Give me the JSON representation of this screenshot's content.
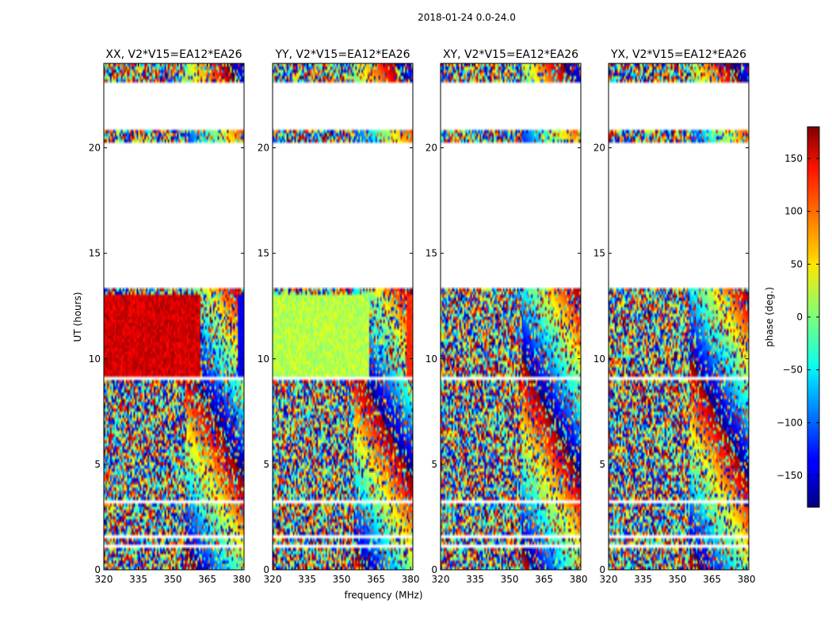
{
  "chart_data": {
    "type": "heatmap",
    "suptitle": "2018-01-24 0.0-24.0",
    "xlabel": "frequency (MHz)",
    "ylabel": "UT (hours)",
    "xlim": [
      320,
      381
    ],
    "ylim": [
      0,
      24
    ],
    "xticks": [
      320,
      335,
      350,
      365,
      380
    ],
    "yticks": [
      0,
      5,
      10,
      15,
      20
    ],
    "panels": [
      {
        "title": "XX, V2*V15=EA12*EA26",
        "product": "XX"
      },
      {
        "title": "YY, V2*V15=EA12*EA26",
        "product": "YY"
      },
      {
        "title": "XY, V2*V15=EA12*EA26",
        "product": "XY"
      },
      {
        "title": "YX, V2*V15=EA12*EA26",
        "product": "YX"
      }
    ],
    "colorbar": {
      "label": "phase (deg.)",
      "range": [
        -180,
        180
      ],
      "ticks": [
        -150,
        -100,
        -50,
        0,
        50,
        100,
        150
      ],
      "colormap": "jet"
    },
    "no_data_ut_ranges": [
      [
        1.0,
        1.25
      ],
      [
        1.45,
        1.6
      ],
      [
        3.1,
        3.25
      ],
      [
        9.0,
        9.15
      ],
      [
        13.4,
        20.25
      ],
      [
        20.85,
        23.05
      ]
    ],
    "coherent_phase_block": {
      "ut_range": [
        9.15,
        13.0
      ],
      "XX": {
        "low_freq_phase_deg": 150,
        "high_freq_edge_phase_deg": -140
      },
      "YY": {
        "low_freq_phase_deg": 20,
        "high_freq_edge_phase_deg": 120
      },
      "XY": {
        "phase": "random"
      },
      "YX": {
        "phase": "random"
      }
    }
  }
}
